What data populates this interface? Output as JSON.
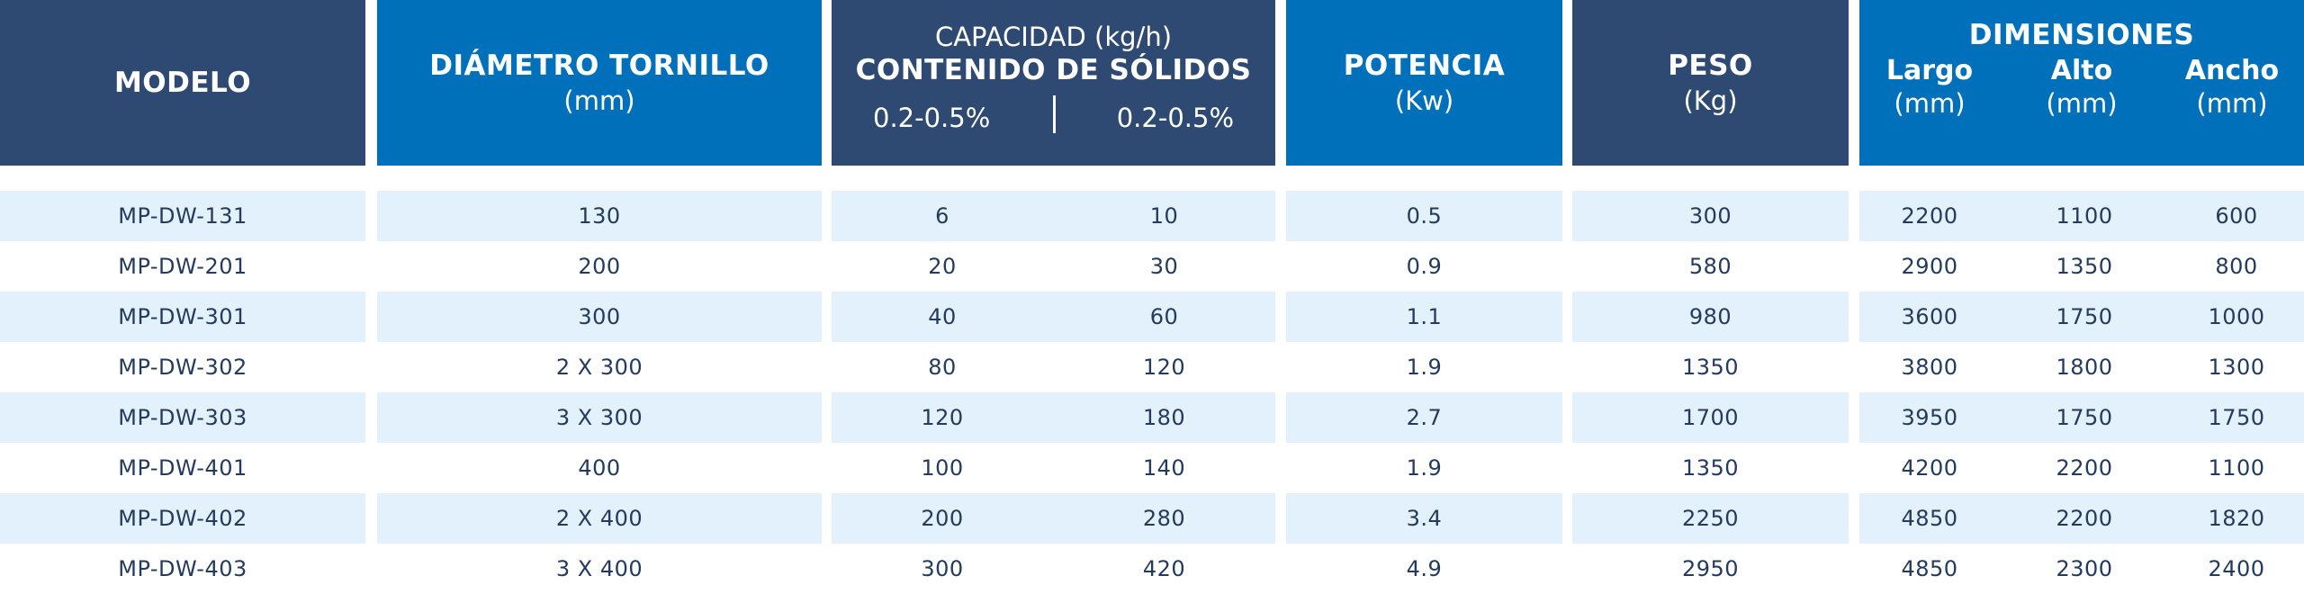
{
  "header": {
    "modelo": "MODELO",
    "diametro": {
      "title": "DIÁMETRO TORNILLO",
      "unit": "(mm)"
    },
    "capacidad": {
      "title": "CAPACIDAD (kg/h)",
      "subtitle": "CONTENIDO DE SÓLIDOS",
      "range1": "0.2-0.5%",
      "range2": "0.2-0.5%"
    },
    "potencia": {
      "title": "POTENCIA",
      "unit": "(Kw)"
    },
    "peso": {
      "title": "PESO",
      "unit": "(Kg)"
    },
    "dimensiones": {
      "title": "DIMENSIONES",
      "largo": {
        "name": "Largo",
        "unit": "(mm)"
      },
      "alto": {
        "name": "Alto",
        "unit": "(mm)"
      },
      "ancho": {
        "name": "Ancho",
        "unit": "(mm)"
      }
    }
  },
  "colors": {
    "dark_header": "#2f4a72",
    "blue_header": "#0070bb",
    "row_alt": "#e3f1fc",
    "text": "#243a5e"
  },
  "rows": [
    {
      "modelo": "MP-DW-131",
      "diametro": "130",
      "cap1": "6",
      "cap2": "10",
      "potencia": "0.5",
      "peso": "300",
      "largo": "2200",
      "alto": "1100",
      "ancho": "600"
    },
    {
      "modelo": "MP-DW-201",
      "diametro": "200",
      "cap1": "20",
      "cap2": "30",
      "potencia": "0.9",
      "peso": "580",
      "largo": "2900",
      "alto": "1350",
      "ancho": "800"
    },
    {
      "modelo": "MP-DW-301",
      "diametro": "300",
      "cap1": "40",
      "cap2": "60",
      "potencia": "1.1",
      "peso": "980",
      "largo": "3600",
      "alto": "1750",
      "ancho": "1000"
    },
    {
      "modelo": "MP-DW-302",
      "diametro": "2 X 300",
      "cap1": "80",
      "cap2": "120",
      "potencia": "1.9",
      "peso": "1350",
      "largo": "3800",
      "alto": "1800",
      "ancho": "1300"
    },
    {
      "modelo": "MP-DW-303",
      "diametro": "3 X 300",
      "cap1": "120",
      "cap2": "180",
      "potencia": "2.7",
      "peso": "1700",
      "largo": "3950",
      "alto": "1750",
      "ancho": "1750"
    },
    {
      "modelo": "MP-DW-401",
      "diametro": "400",
      "cap1": "100",
      "cap2": "140",
      "potencia": "1.9",
      "peso": "1350",
      "largo": "4200",
      "alto": "2200",
      "ancho": "1100"
    },
    {
      "modelo": "MP-DW-402",
      "diametro": "2 X 400",
      "cap1": "200",
      "cap2": "280",
      "potencia": "3.4",
      "peso": "2250",
      "largo": "4850",
      "alto": "2200",
      "ancho": "1820"
    },
    {
      "modelo": "MP-DW-403",
      "diametro": "3 X 400",
      "cap1": "300",
      "cap2": "420",
      "potencia": "4.9",
      "peso": "2950",
      "largo": "4850",
      "alto": "2300",
      "ancho": "2400"
    }
  ]
}
